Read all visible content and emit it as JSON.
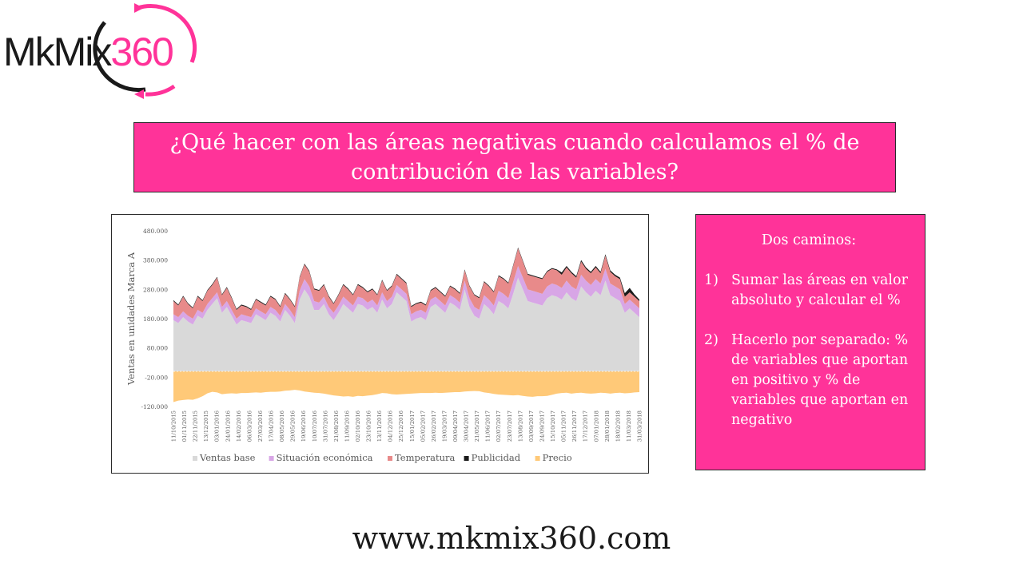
{
  "logo": {
    "text_dark": "MkMix",
    "text_accent": "360",
    "colors": {
      "dark": "#1a1a1a",
      "accent": "#ff3399"
    }
  },
  "title": "¿Qué hacer con las áreas negativas cuando calculamos el % de contribución de las variables?",
  "side_panel": {
    "heading": "Dos caminos:",
    "items": [
      {
        "num": "1)",
        "text": "Sumar las áreas en valor absoluto y calcular el %"
      },
      {
        "num": "2)",
        "text": "Hacerlo por separado: % de variables que aportan en positivo y % de variables que aportan en negativo"
      }
    ]
  },
  "footer": "www.mkmix360.com",
  "colors": {
    "accent": "#ff3399",
    "ventas_base": "#d9d9d9",
    "situacion": "#d8a6e6",
    "temperatura": "#e88a8a",
    "publicidad": "#1a1a1a",
    "precio": "#ffc978"
  },
  "chart_data": {
    "type": "area",
    "stacked": true,
    "title": "",
    "xlabel": "",
    "ylabel": "Ventas en unidades Marca A",
    "ylim": [
      -120000,
      480000
    ],
    "yticks": [
      480000,
      380000,
      280000,
      180000,
      80000,
      -20000,
      -120000
    ],
    "ytick_labels": [
      "480.000",
      "380.000",
      "280.000",
      "180.000",
      "80.000",
      "-20.000",
      "-120.000"
    ],
    "xtick_labels": [
      "11/10/2015",
      "01/11/2015",
      "22/11/2015",
      "13/12/2015",
      "03/01/2016",
      "24/01/2016",
      "14/02/2016",
      "06/03/2016",
      "27/03/2016",
      "17/04/2016",
      "08/05/2016",
      "29/05/2016",
      "19/06/2016",
      "10/07/2016",
      "31/07/2016",
      "21/08/2016",
      "11/09/2016",
      "02/10/2016",
      "23/10/2016",
      "13/11/2016",
      "04/12/2016",
      "25/12/2016",
      "15/01/2017",
      "05/02/2017",
      "26/02/2017",
      "19/03/2017",
      "09/04/2017",
      "30/04/2017",
      "21/05/2017",
      "11/06/2017",
      "02/07/2017",
      "23/07/2017",
      "13/08/2017",
      "03/09/2017",
      "24/09/2017",
      "15/10/2017",
      "05/11/2017",
      "26/11/2017",
      "17/12/2017",
      "07/01/2018",
      "28/01/2018",
      "18/02/2018",
      "11/03/2018",
      "31/03/2018"
    ],
    "grid": false,
    "legend": "bottom",
    "series": [
      {
        "name": "Ventas base",
        "color": "#d9d9d9",
        "values": [
          175000,
          165000,
          185000,
          170000,
          160000,
          190000,
          180000,
          210000,
          230000,
          250000,
          200000,
          220000,
          190000,
          160000,
          175000,
          170000,
          165000,
          195000,
          185000,
          175000,
          200000,
          190000,
          170000,
          210000,
          190000,
          165000,
          245000,
          280000,
          255000,
          210000,
          210000,
          230000,
          195000,
          175000,
          200000,
          230000,
          215000,
          200000,
          230000,
          225000,
          210000,
          220000,
          200000,
          245000,
          215000,
          230000,
          270000,
          255000,
          240000,
          170000,
          180000,
          185000,
          175000,
          220000,
          230000,
          215000,
          200000,
          235000,
          225000,
          210000,
          280000,
          220000,
          190000,
          180000,
          230000,
          215000,
          195000,
          240000,
          230000,
          215000,
          265000,
          320000,
          280000,
          240000,
          235000,
          230000,
          225000,
          250000,
          260000,
          255000,
          245000,
          270000,
          250000,
          240000,
          290000,
          270000,
          255000,
          275000,
          260000,
          310000,
          260000,
          250000,
          240000,
          200000,
          215000,
          200000,
          185000
        ]
      },
      {
        "name": "Situación económica",
        "color": "#d8a6e6",
        "values": [
          20000,
          20000,
          20000,
          20000,
          20000,
          20000,
          20000,
          20000,
          20000,
          20000,
          20000,
          20000,
          20000,
          20000,
          20000,
          20000,
          20000,
          20000,
          20000,
          20000,
          20000,
          20000,
          20000,
          20000,
          20000,
          20000,
          30000,
          35000,
          35000,
          30000,
          25000,
          25000,
          25000,
          25000,
          25000,
          25000,
          25000,
          25000,
          25000,
          25000,
          25000,
          25000,
          25000,
          25000,
          25000,
          25000,
          25000,
          25000,
          25000,
          25000,
          25000,
          25000,
          25000,
          25000,
          25000,
          25000,
          25000,
          25000,
          25000,
          25000,
          30000,
          30000,
          30000,
          30000,
          30000,
          30000,
          30000,
          35000,
          35000,
          35000,
          40000,
          40000,
          40000,
          40000,
          40000,
          40000,
          40000,
          40000,
          40000,
          40000,
          40000,
          40000,
          40000,
          40000,
          40000,
          40000,
          40000,
          40000,
          40000,
          40000,
          40000,
          40000,
          40000,
          30000,
          30000,
          30000,
          30000
        ]
      },
      {
        "name": "Temperatura",
        "color": "#e88a8a",
        "values": [
          45000,
          40000,
          50000,
          40000,
          35000,
          45000,
          40000,
          45000,
          45000,
          50000,
          40000,
          45000,
          40000,
          30000,
          30000,
          30000,
          25000,
          30000,
          30000,
          30000,
          35000,
          35000,
          30000,
          35000,
          35000,
          35000,
          45000,
          50000,
          50000,
          40000,
          40000,
          40000,
          35000,
          30000,
          35000,
          40000,
          40000,
          35000,
          40000,
          35000,
          35000,
          35000,
          35000,
          40000,
          35000,
          35000,
          35000,
          35000,
          35000,
          25000,
          25000,
          25000,
          25000,
          30000,
          30000,
          30000,
          30000,
          30000,
          30000,
          30000,
          35000,
          40000,
          40000,
          40000,
          45000,
          45000,
          45000,
          50000,
          50000,
          50000,
          55000,
          60000,
          55000,
          50000,
          50000,
          50000,
          50000,
          50000,
          50000,
          50000,
          45000,
          45000,
          45000,
          40000,
          45000,
          40000,
          40000,
          40000,
          35000,
          45000,
          40000,
          35000,
          35000,
          25000,
          25000,
          25000,
          25000
        ]
      },
      {
        "name": "Publicidad",
        "color": "#1a1a1a",
        "values": [
          3000,
          3000,
          3000,
          3000,
          3000,
          3000,
          3000,
          3000,
          3000,
          3000,
          3000,
          3000,
          3000,
          3000,
          3000,
          3000,
          3000,
          3000,
          3000,
          3000,
          3000,
          3000,
          3000,
          3000,
          3000,
          3000,
          3000,
          3000,
          3000,
          3000,
          3000,
          3000,
          3000,
          3000,
          3000,
          3000,
          3000,
          3000,
          3000,
          3000,
          3000,
          3000,
          3000,
          3000,
          3000,
          3000,
          3000,
          3000,
          3000,
          3000,
          3000,
          3000,
          3000,
          3000,
          3000,
          3000,
          3000,
          3000,
          3000,
          3000,
          3000,
          3000,
          3000,
          3000,
          3000,
          3000,
          3000,
          3000,
          3000,
          3000,
          3000,
          3000,
          3000,
          3000,
          3000,
          3000,
          3000,
          3000,
          3000,
          3000,
          8000,
          5000,
          5000,
          5000,
          5000,
          5000,
          5000,
          5000,
          5000,
          5000,
          5000,
          5000,
          5000,
          12000,
          15000,
          8000,
          5000
        ]
      },
      {
        "name": "Precio",
        "color": "#ffc978",
        "values": [
          -105000,
          -100000,
          -98000,
          -96000,
          -97000,
          -92000,
          -85000,
          -75000,
          -70000,
          -72000,
          -78000,
          -76000,
          -75000,
          -76000,
          -74000,
          -74000,
          -73000,
          -72000,
          -73000,
          -71000,
          -70000,
          -70000,
          -69000,
          -66000,
          -65000,
          -63000,
          -65000,
          -69000,
          -71000,
          -73000,
          -74000,
          -76000,
          -79000,
          -82000,
          -84000,
          -86000,
          -85000,
          -87000,
          -84000,
          -85000,
          -83000,
          -81000,
          -78000,
          -74000,
          -75000,
          -78000,
          -79000,
          -78000,
          -77000,
          -76000,
          -75000,
          -74000,
          -74000,
          -74000,
          -73000,
          -74000,
          -73000,
          -72000,
          -71000,
          -71000,
          -69000,
          -68000,
          -67000,
          -68000,
          -72000,
          -74000,
          -77000,
          -79000,
          -80000,
          -81000,
          -82000,
          -81000,
          -84000,
          -86000,
          -87000,
          -85000,
          -85000,
          -84000,
          -80000,
          -76000,
          -74000,
          -73000,
          -76000,
          -74000,
          -73000,
          -75000,
          -76000,
          -75000,
          -73000,
          -74000,
          -76000,
          -74000,
          -73000,
          -75000,
          -74000,
          -72000,
          -71000
        ]
      }
    ]
  }
}
